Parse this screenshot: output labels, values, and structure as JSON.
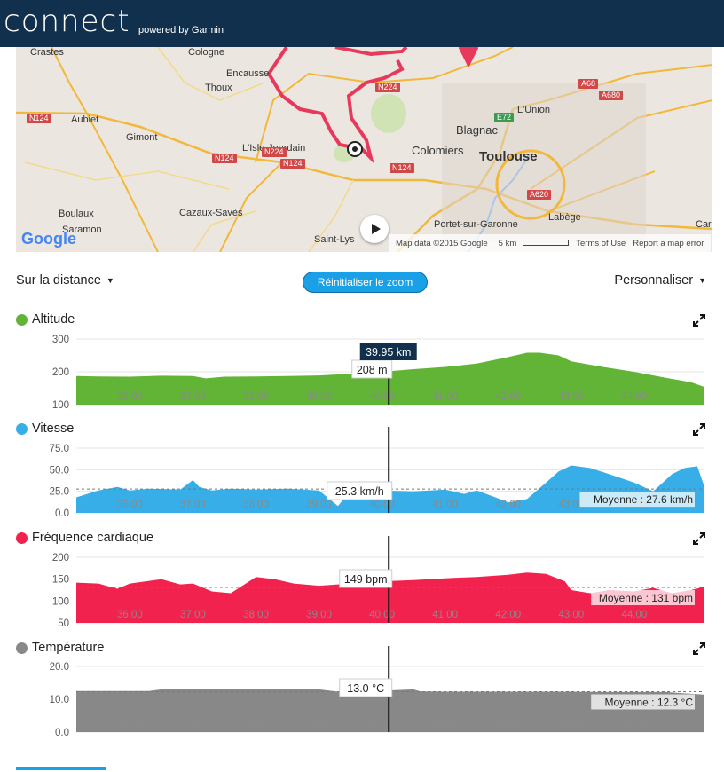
{
  "header": {
    "logo": "connect",
    "logo_sub": "powered by Garmin",
    "background": "#11304d"
  },
  "map": {
    "labels": {
      "crastes": "Crastes",
      "cologne": "Cologne",
      "encausse": "Encausse",
      "thoux": "Thoux",
      "aubiet": "Aubiet",
      "gimont": "Gimont",
      "lisle": "L'Isle-Jourdain",
      "colomiers": "Colomiers",
      "blagnac": "Blagnac",
      "toulouse": "Toulouse",
      "lunion": "L'Union",
      "boulaux": "Boulaux",
      "saramon": "Saramon",
      "cazaux": "Cazaux-Savès",
      "saintlys": "Saint-Lys",
      "portet": "Portet-sur-Garonne",
      "labege": "Labège",
      "cara": "Cara"
    },
    "roads": {
      "n124a": "N124",
      "n224a": "N224",
      "n224b": "N224",
      "n124b": "N124",
      "n124c": "N124",
      "n124d": "N124",
      "e72": "E72",
      "a68": "A68",
      "a680": "A680",
      "a620": "A620"
    },
    "google": "Google",
    "footer": {
      "data": "Map data ©2015 Google",
      "scale": "5 km",
      "terms": "Terms of Use",
      "report": "Report a map error"
    }
  },
  "controls": {
    "distance_dropdown": "Sur la distance",
    "reset_zoom": "Réinitialiser le zoom",
    "customize": "Personnaliser"
  },
  "cursor": {
    "distance_label": "39.95 km",
    "x_km": 40.1
  },
  "charts": [
    {
      "key": "altitude",
      "title": "Altitude",
      "color": "#62b436",
      "y_ticks": [
        "300",
        "200",
        "100"
      ],
      "ylim": [
        100,
        300
      ],
      "tooltip": "208 m",
      "avg_label": ""
    },
    {
      "key": "vitesse",
      "title": "Vitesse",
      "color": "#37aee7",
      "y_ticks": [
        "75.0",
        "50.0",
        "25.0",
        "0.0"
      ],
      "ylim": [
        0,
        75
      ],
      "tooltip": "25.3 km/h",
      "avg_label": "Moyenne : 27.6 km/h",
      "avg": 27.6
    },
    {
      "key": "frequence",
      "title": "Fréquence cardiaque",
      "color": "#f2224f",
      "y_ticks": [
        "200",
        "150",
        "100",
        "50"
      ],
      "ylim": [
        50,
        200
      ],
      "tooltip": "149 bpm",
      "avg_label": "Moyenne : 131 bpm",
      "avg": 131
    },
    {
      "key": "temperature",
      "title": "Température",
      "color": "#888888",
      "y_ticks": [
        "20.0",
        "10.0",
        "0.0"
      ],
      "ylim": [
        0,
        20
      ],
      "tooltip": "13.0 °C",
      "avg_label": "Moyenne : 12.3 °C",
      "avg": 12.3
    }
  ],
  "x_ticks": [
    "36.00",
    "37.00",
    "38.00",
    "39.00",
    "40.00",
    "41.00",
    "42.00",
    "43.00",
    "44.00"
  ],
  "chart_data": [
    {
      "type": "area",
      "title": "Altitude",
      "xlim": [
        35.15,
        45.1
      ],
      "ylim": [
        100,
        300
      ],
      "x": [
        35.15,
        35.5,
        36.0,
        36.5,
        37.0,
        37.2,
        37.5,
        38.0,
        38.5,
        39.0,
        39.5,
        40.0,
        40.5,
        41.0,
        41.5,
        42.0,
        42.3,
        42.5,
        42.8,
        43.0,
        43.5,
        44.0,
        44.5,
        44.9,
        45.1
      ],
      "values": [
        187,
        186,
        185,
        188,
        187,
        180,
        185,
        186,
        187,
        189,
        194,
        200,
        208,
        215,
        225,
        245,
        258,
        258,
        250,
        232,
        215,
        200,
        182,
        168,
        155
      ],
      "series": [
        {
          "name": "Altitude",
          "values": [
            187,
            186,
            185,
            188,
            187,
            180,
            185,
            186,
            187,
            189,
            194,
            200,
            208,
            215,
            225,
            245,
            258,
            258,
            250,
            232,
            215,
            200,
            182,
            168,
            155
          ]
        }
      ]
    },
    {
      "type": "area",
      "title": "Vitesse",
      "xlim": [
        35.15,
        45.1
      ],
      "ylim": [
        0,
        75
      ],
      "x": [
        35.15,
        35.5,
        35.8,
        36.0,
        36.3,
        36.8,
        37.0,
        37.1,
        37.3,
        37.6,
        38.0,
        38.5,
        39.0,
        39.3,
        39.5,
        40.0,
        40.5,
        41.0,
        41.3,
        41.5,
        41.8,
        42.0,
        42.3,
        42.6,
        42.8,
        43.0,
        43.3,
        43.6,
        44.0,
        44.3,
        44.6,
        44.8,
        45.0,
        45.1
      ],
      "values": [
        18,
        26,
        30,
        26,
        28,
        27,
        38,
        30,
        26,
        28,
        27,
        28,
        26,
        8,
        26,
        26,
        25,
        27,
        22,
        26,
        18,
        12,
        16,
        35,
        48,
        55,
        52,
        45,
        35,
        25,
        45,
        52,
        54,
        33
      ],
      "series": [
        {
          "name": "Vitesse",
          "values": [
            18,
            26,
            30,
            26,
            28,
            27,
            38,
            30,
            26,
            28,
            27,
            28,
            26,
            8,
            26,
            26,
            25,
            27,
            22,
            26,
            18,
            12,
            16,
            35,
            48,
            55,
            52,
            45,
            35,
            25,
            45,
            52,
            54,
            33
          ]
        }
      ]
    },
    {
      "type": "area",
      "title": "Fréquence cardiaque",
      "xlim": [
        35.15,
        45.1
      ],
      "ylim": [
        50,
        200
      ],
      "x": [
        35.15,
        35.5,
        35.8,
        36.0,
        36.5,
        36.8,
        37.0,
        37.3,
        37.6,
        38.0,
        38.3,
        38.6,
        39.0,
        39.3,
        39.5,
        40.0,
        40.5,
        41.0,
        41.5,
        42.0,
        42.3,
        42.6,
        42.9,
        43.0,
        43.3,
        43.6,
        44.0,
        44.3,
        44.6,
        44.9,
        45.1
      ],
      "values": [
        142,
        140,
        128,
        140,
        150,
        138,
        140,
        122,
        118,
        155,
        150,
        140,
        135,
        138,
        140,
        145,
        148,
        152,
        155,
        160,
        165,
        162,
        145,
        125,
        118,
        125,
        122,
        130,
        118,
        125,
        132
      ],
      "series": [
        {
          "name": "Fréquence cardiaque",
          "values": [
            142,
            140,
            128,
            140,
            150,
            138,
            140,
            122,
            118,
            155,
            150,
            140,
            135,
            138,
            140,
            145,
            148,
            152,
            155,
            160,
            165,
            162,
            145,
            125,
            118,
            125,
            122,
            130,
            118,
            125,
            132
          ]
        }
      ]
    },
    {
      "type": "area",
      "title": "Température",
      "xlim": [
        35.15,
        45.1
      ],
      "ylim": [
        0,
        20
      ],
      "x": [
        35.15,
        35.8,
        36.3,
        36.5,
        37.0,
        37.5,
        38.0,
        38.5,
        39.0,
        39.3,
        39.5,
        40.0,
        40.5,
        40.6,
        41.0,
        41.5,
        42.0,
        42.5,
        43.0,
        43.5,
        44.0,
        44.5,
        45.1
      ],
      "values": [
        12.5,
        12.5,
        12.5,
        13.0,
        13.0,
        13.0,
        13.0,
        13.0,
        13.0,
        12.3,
        12.5,
        12.6,
        13.0,
        12.4,
        12.3,
        12.3,
        12.3,
        12.3,
        12.3,
        12.2,
        12.2,
        12.2,
        11.4
      ],
      "series": [
        {
          "name": "Température",
          "values": [
            12.5,
            12.5,
            12.5,
            13.0,
            13.0,
            13.0,
            13.0,
            13.0,
            13.0,
            12.3,
            12.5,
            12.6,
            13.0,
            12.4,
            12.3,
            12.3,
            12.3,
            12.3,
            12.3,
            12.2,
            12.2,
            12.2,
            11.4
          ]
        }
      ]
    }
  ]
}
